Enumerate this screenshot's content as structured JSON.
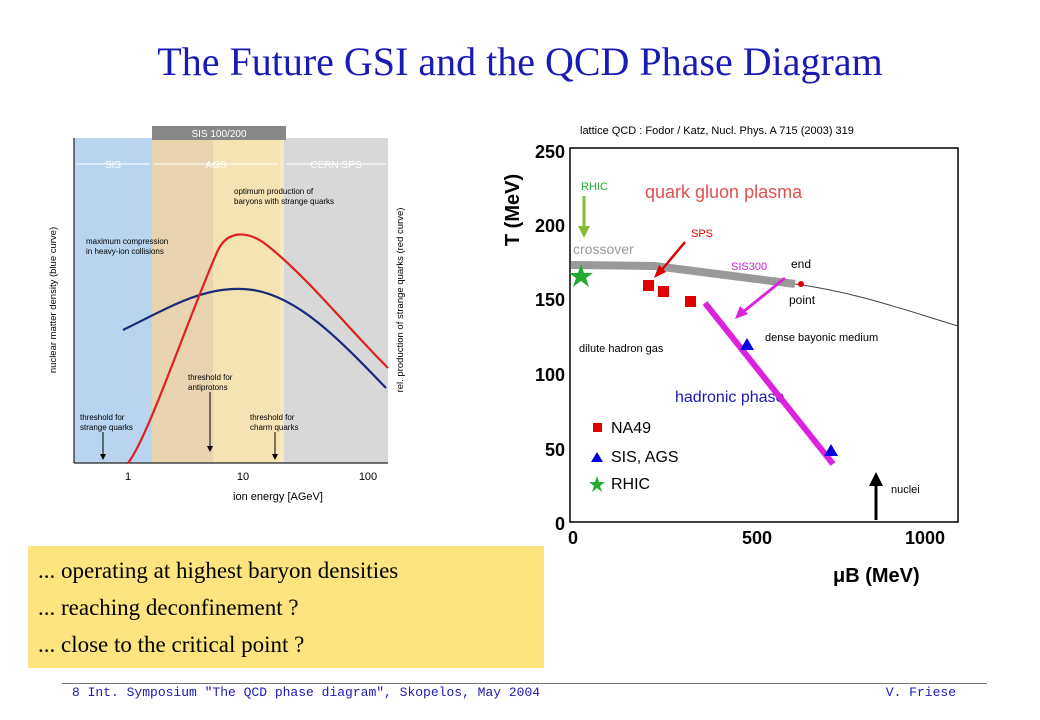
{
  "slide": {
    "title": "The Future GSI and the QCD Phase Diagram",
    "footer_left": "8  Int. Symposium \"The QCD phase diagram\", Skopelos, May 2004",
    "footer_right": "V. Friese"
  },
  "left_figure": {
    "top_bracket": "SIS 100/200",
    "regions": [
      "SIS",
      "AGS",
      "CERN SPS"
    ],
    "annotation_optimum": [
      "optimum production of",
      "baryons with strange quarks"
    ],
    "annotation_max": [
      "maximum compression",
      "in heavy-ion collisions"
    ],
    "threshold_strange": [
      "threshold for",
      "strange quarks"
    ],
    "threshold_antiprotons": [
      "threshold for",
      "antiprotons"
    ],
    "threshold_charm": [
      "threshold for",
      "charm quarks"
    ],
    "y_left": "nuclear matter density  (blue curve)",
    "y_right": "rel. production of strange quarks (red curve)",
    "x_label": "ion energy [AGeV]",
    "x_ticks": [
      "1",
      "10",
      "100"
    ]
  },
  "right_figure": {
    "reference": "lattice QCD : Fodor / Katz, Nucl. Phys. A 715 (2003) 319",
    "y_label": "T (MeV)",
    "x_label": "μB (MeV)",
    "y_ticks": [
      "250",
      "200",
      "150",
      "100",
      "50",
      "0"
    ],
    "x_ticks": [
      "0",
      "500",
      "1000"
    ],
    "labels": {
      "qgp": "quark gluon plasma",
      "crossover": "crossover",
      "rhic_arrow": "RHIC",
      "sps_arrow": "SPS",
      "sis300_arrow": "SIS300",
      "end": "end",
      "point": "point",
      "dilute": "dilute hadron gas",
      "dense": "dense bayonic medium",
      "hadronic": "hadronic phase",
      "nuclei": "nuclei"
    },
    "legend": [
      "NA49",
      "SIS, AGS",
      "RHIC"
    ],
    "colors": {
      "na49": "#e00000",
      "sis_ags": "#0000e0",
      "rhic": "#22aa33",
      "sis300": "#dd22dd",
      "accent_title": "#1a1ab4"
    }
  },
  "notes": [
    "... operating at highest baryon densities",
    "... reaching deconfinement  ?",
    "... close to the critical point ?"
  ]
}
